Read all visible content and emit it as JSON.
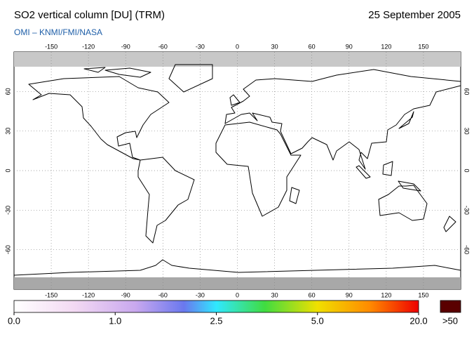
{
  "header": {
    "title": "SO2 vertical column [DU] (TRM)",
    "date": "25 September 2005",
    "subtitle": "OMI  –  KNMI/FMI/NASA"
  },
  "map": {
    "lonlim": [
      -180,
      180
    ],
    "latlim": [
      -90,
      90
    ],
    "lon_ticks": [
      -150,
      -120,
      -90,
      -60,
      -30,
      0,
      30,
      60,
      90,
      120,
      150
    ],
    "lat_ticks": [
      60,
      30,
      0,
      -30,
      -60
    ]
  },
  "colorbar": {
    "ticks": [
      {
        "value": 0,
        "label": "0.0"
      },
      {
        "value": 1,
        "label": "1.0"
      },
      {
        "value": 2.5,
        "label": "2.5"
      },
      {
        "value": 5,
        "label": "5.0"
      },
      {
        "value": 20,
        "label": "20.0"
      }
    ],
    "overflow_label": ">50"
  }
}
